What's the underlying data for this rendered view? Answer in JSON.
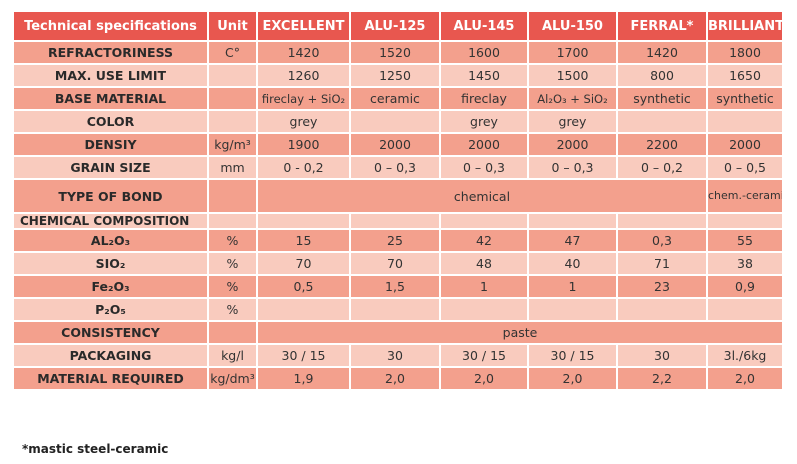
{
  "headers": [
    "Technical specifications",
    "Unit",
    "EXCELLENT",
    "ALU-125",
    "ALU-145",
    "ALU-150",
    "FERRAL*",
    "BRILLIANT"
  ],
  "rows": {
    "refractoriness": {
      "label": "REFRACTORINESS",
      "unit": "C°",
      "values": [
        "1420",
        "1520",
        "1600",
        "1700",
        "1420",
        "1800"
      ]
    },
    "max_use_limit": {
      "label": "MAX. USE LIMIT",
      "unit": "",
      "values": [
        "1260",
        "1250",
        "1450",
        "1500",
        "800",
        "1650"
      ]
    },
    "base_material": {
      "label": "BASE MATERIAL",
      "unit": "",
      "values": [
        "fireclay + SiO₂",
        "ceramic",
        "fireclay",
        "Al₂O₃ + SiO₂",
        "synthetic",
        "synthetic"
      ]
    },
    "color": {
      "label": "COLOR",
      "unit": "",
      "values": [
        "grey",
        "",
        "grey",
        "grey",
        "",
        ""
      ]
    },
    "density": {
      "label": "DENSIY",
      "unit": "kg/m³",
      "values": [
        "1900",
        "2000",
        "2000",
        "2000",
        "2200",
        "2000"
      ]
    },
    "grain_size": {
      "label": "GRAIN SIZE",
      "unit": "mm",
      "values": [
        "0 - 0,2",
        "0 – 0,3",
        "0 – 0,3",
        "0 – 0,3",
        "0 – 0,2",
        "0 – 0,5"
      ]
    },
    "type_of_bond": {
      "label": "TYPE OF BOND",
      "unit": "",
      "merged": "chemical",
      "last": "chem.-ceramics"
    },
    "chemical_composition": {
      "label": "CHEMICAL COMPOSITION"
    },
    "al2o3": {
      "label": "AL₂O₃",
      "unit": "%",
      "values": [
        "15",
        "25",
        "42",
        "47",
        "0,3",
        "55"
      ]
    },
    "sio2": {
      "label": "SIO₂",
      "unit": "%",
      "values": [
        "70",
        "70",
        "48",
        "40",
        "71",
        "38"
      ]
    },
    "fe2o3": {
      "label": "Fe₂O₃",
      "unit": "%",
      "values": [
        "0,5",
        "1,5",
        "1",
        "1",
        "23",
        "0,9"
      ]
    },
    "p2o5": {
      "label": "P₂O₅",
      "unit": "%",
      "values": [
        "",
        "",
        "",
        "",
        "",
        ""
      ]
    },
    "consistency": {
      "label": "CONSISTENCY",
      "unit": "",
      "merged": "paste"
    },
    "packaging": {
      "label": "PACKAGING",
      "unit": "kg/l",
      "values": [
        "30 / 15",
        "30",
        "30 / 15",
        "30 / 15",
        "30",
        "3l./6kg"
      ]
    },
    "material_required": {
      "label": "MATERIAL REQUIRED",
      "unit": "kg/dm³",
      "values": [
        "1,9",
        "2,0",
        "2,0",
        "2,0",
        "2,2",
        "2,0"
      ]
    }
  },
  "footnote": "*mastic steel-ceramic",
  "colors": {
    "header_bg": "#e8574f",
    "row_dark": "#f3a08d",
    "row_light": "#f9cbbe"
  }
}
